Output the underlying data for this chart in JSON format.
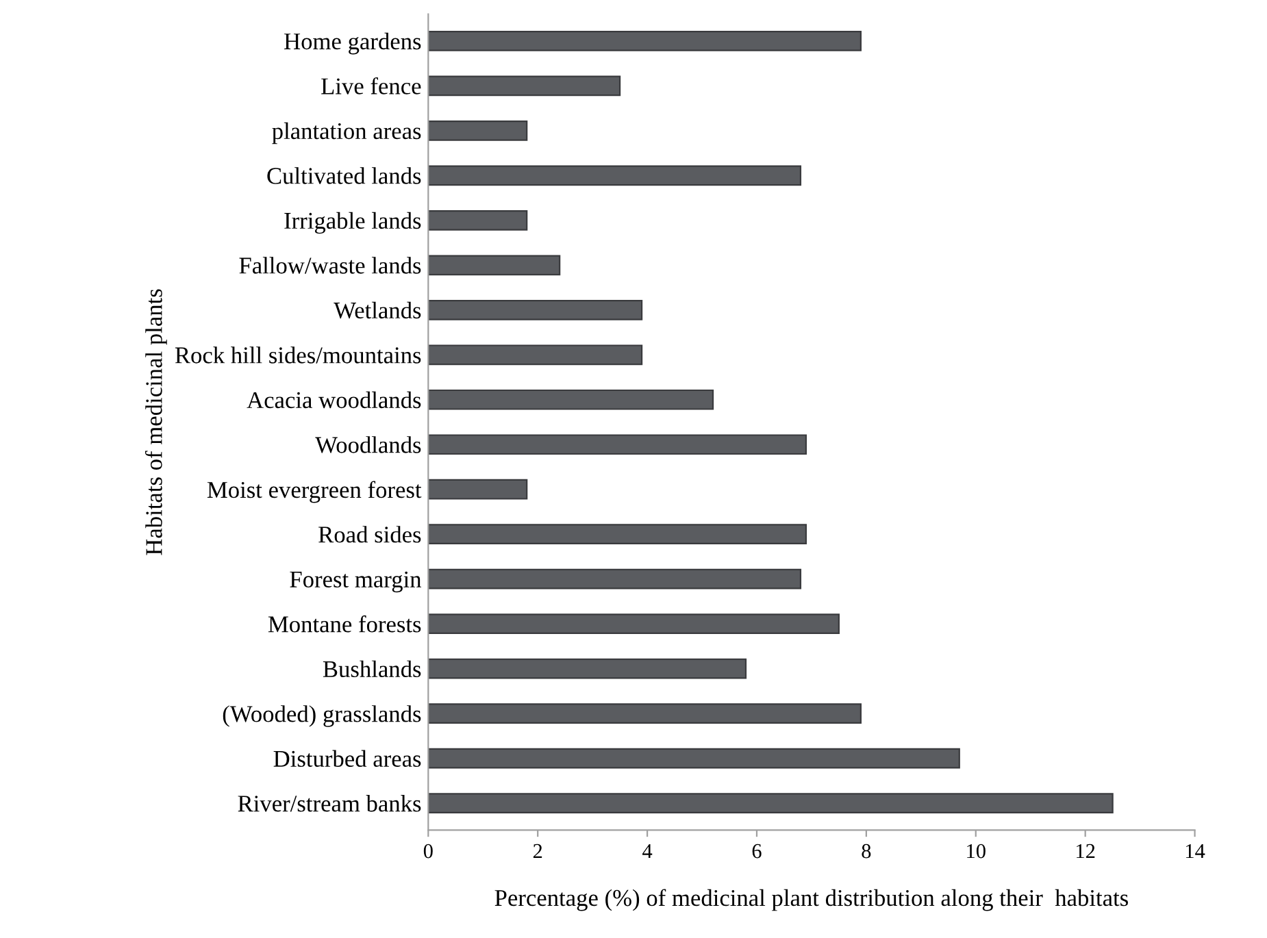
{
  "chart_data": {
    "type": "bar",
    "orientation": "horizontal",
    "xlabel": "Percentage (%) of medicinal plant distribution along their  habitats",
    "ylabel": "Habitats of medicinal plants",
    "categories": [
      "Home gardens",
      "Live fence",
      "plantation areas",
      "Cultivated lands",
      "Irrigable lands",
      "Fallow/waste lands",
      "Wetlands",
      "Rock hill sides/mountains",
      "Acacia woodlands",
      "Woodlands",
      "Moist evergreen forest",
      "Road sides",
      "Forest margin",
      "Montane forests",
      "Bushlands",
      "(Wooded) grasslands",
      "Disturbed areas",
      "River/stream banks"
    ],
    "values": [
      7.9,
      3.5,
      1.8,
      6.8,
      1.8,
      2.4,
      3.9,
      3.9,
      5.2,
      6.9,
      1.8,
      6.9,
      6.8,
      7.5,
      5.8,
      7.9,
      9.7,
      12.5
    ],
    "color": "#5a5c60",
    "xlim": [
      0,
      14
    ],
    "xticks": [
      0,
      2,
      4,
      6,
      8,
      10,
      12,
      14
    ],
    "grid": false,
    "legend": false
  }
}
